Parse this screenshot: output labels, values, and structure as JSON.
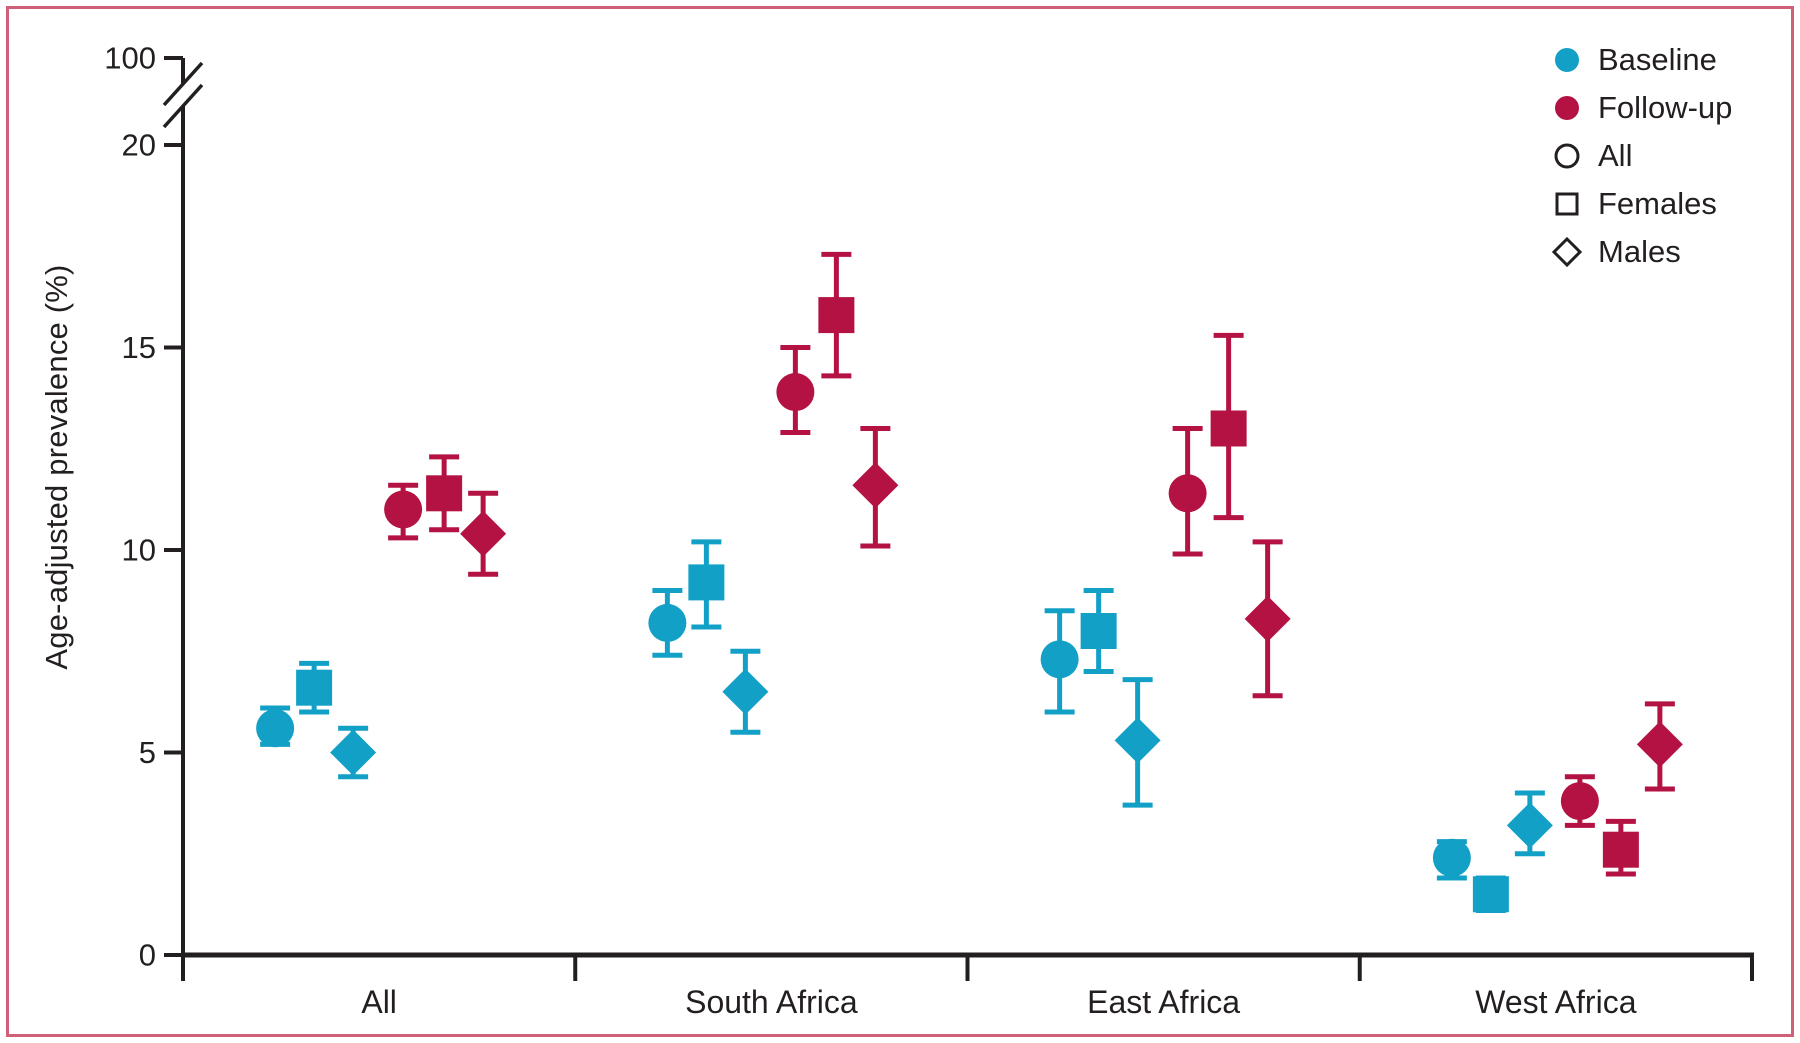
{
  "colors": {
    "baseline": "#13a0c7",
    "follow_up": "#b31243",
    "axis_and_text": "#231f20",
    "frame_border": "#d06079",
    "background": "#ffffff"
  },
  "legend": {
    "items": [
      {
        "label": "Baseline",
        "marker": "circle",
        "fill": "#13a0c7"
      },
      {
        "label": "Follow-up",
        "marker": "circle",
        "fill": "#b31243"
      },
      {
        "label": "All",
        "marker": "circle",
        "fill": "none"
      },
      {
        "label": "Females",
        "marker": "square",
        "fill": "none"
      },
      {
        "label": "Males",
        "marker": "diamond",
        "fill": "none"
      }
    ]
  },
  "chart_data": {
    "type": "scatter",
    "title": "",
    "xlabel": "",
    "ylabel": "Age-adjusted prevalence (%)",
    "x_categories": [
      "All",
      "South Africa",
      "East Africa",
      "West Africa"
    ],
    "y_ticks": [
      "0",
      "5",
      "10",
      "15",
      "20"
    ],
    "y_axis_break": {
      "present": true,
      "upper_tick_label": "100"
    },
    "ylim": [
      0,
      20
    ],
    "grid": false,
    "legend_position": "top-right",
    "marker_meaning": {
      "circle": "All",
      "square": "Females",
      "diamond": "Males"
    },
    "series": [
      {
        "name": "Baseline",
        "color": "#13a0c7",
        "points": [
          {
            "category": "All",
            "subgroup": "All",
            "marker": "circle",
            "value": 5.6,
            "ci": [
              5.2,
              6.1
            ]
          },
          {
            "category": "All",
            "subgroup": "Females",
            "marker": "square",
            "value": 6.6,
            "ci": [
              6.0,
              7.2
            ]
          },
          {
            "category": "All",
            "subgroup": "Males",
            "marker": "diamond",
            "value": 5.0,
            "ci": [
              4.4,
              5.6
            ]
          },
          {
            "category": "South Africa",
            "subgroup": "All",
            "marker": "circle",
            "value": 8.2,
            "ci": [
              7.4,
              9.0
            ]
          },
          {
            "category": "South Africa",
            "subgroup": "Females",
            "marker": "square",
            "value": 9.2,
            "ci": [
              8.1,
              10.2
            ]
          },
          {
            "category": "South Africa",
            "subgroup": "Males",
            "marker": "diamond",
            "value": 6.5,
            "ci": [
              5.5,
              7.5
            ]
          },
          {
            "category": "East Africa",
            "subgroup": "All",
            "marker": "circle",
            "value": 7.3,
            "ci": [
              6.0,
              8.5
            ]
          },
          {
            "category": "East Africa",
            "subgroup": "Females",
            "marker": "square",
            "value": 8.0,
            "ci": [
              7.0,
              9.0
            ]
          },
          {
            "category": "East Africa",
            "subgroup": "Males",
            "marker": "diamond",
            "value": 5.3,
            "ci": [
              3.7,
              6.8
            ]
          },
          {
            "category": "West Africa",
            "subgroup": "All",
            "marker": "circle",
            "value": 2.4,
            "ci": [
              1.9,
              2.8
            ]
          },
          {
            "category": "West Africa",
            "subgroup": "Females",
            "marker": "square",
            "value": 1.5,
            "ci": [
              1.1,
              1.9
            ]
          },
          {
            "category": "West Africa",
            "subgroup": "Males",
            "marker": "diamond",
            "value": 3.2,
            "ci": [
              2.5,
              4.0
            ]
          }
        ]
      },
      {
        "name": "Follow-up",
        "color": "#b31243",
        "points": [
          {
            "category": "All",
            "subgroup": "All",
            "marker": "circle",
            "value": 11.0,
            "ci": [
              10.3,
              11.6
            ]
          },
          {
            "category": "All",
            "subgroup": "Females",
            "marker": "square",
            "value": 11.4,
            "ci": [
              10.5,
              12.3
            ]
          },
          {
            "category": "All",
            "subgroup": "Males",
            "marker": "diamond",
            "value": 10.4,
            "ci": [
              9.4,
              11.4
            ]
          },
          {
            "category": "South Africa",
            "subgroup": "All",
            "marker": "circle",
            "value": 13.9,
            "ci": [
              12.9,
              15.0
            ]
          },
          {
            "category": "South Africa",
            "subgroup": "Females",
            "marker": "square",
            "value": 15.8,
            "ci": [
              14.3,
              17.3
            ]
          },
          {
            "category": "South Africa",
            "subgroup": "Males",
            "marker": "diamond",
            "value": 11.6,
            "ci": [
              10.1,
              13.0
            ]
          },
          {
            "category": "East Africa",
            "subgroup": "All",
            "marker": "circle",
            "value": 11.4,
            "ci": [
              9.9,
              13.0
            ]
          },
          {
            "category": "East Africa",
            "subgroup": "Females",
            "marker": "square",
            "value": 13.0,
            "ci": [
              10.8,
              15.3
            ]
          },
          {
            "category": "East Africa",
            "subgroup": "Males",
            "marker": "diamond",
            "value": 8.3,
            "ci": [
              6.4,
              10.2
            ]
          },
          {
            "category": "West Africa",
            "subgroup": "All",
            "marker": "circle",
            "value": 3.8,
            "ci": [
              3.2,
              4.4
            ]
          },
          {
            "category": "West Africa",
            "subgroup": "Females",
            "marker": "square",
            "value": 2.6,
            "ci": [
              2.0,
              3.3
            ]
          },
          {
            "category": "West Africa",
            "subgroup": "Males",
            "marker": "diamond",
            "value": 5.2,
            "ci": [
              4.1,
              6.2
            ]
          }
        ]
      }
    ]
  }
}
